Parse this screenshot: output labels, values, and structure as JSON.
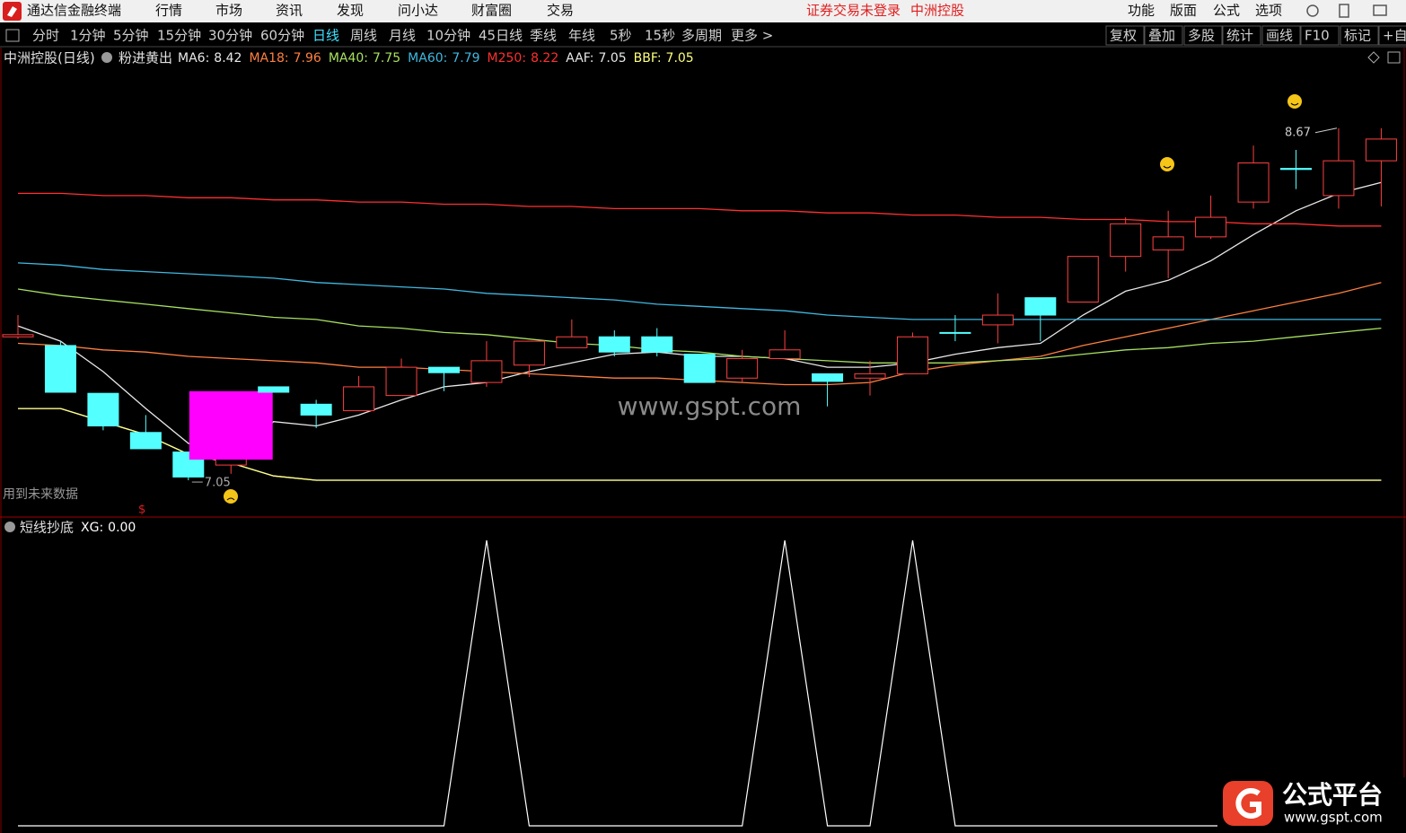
{
  "titlebar": {
    "app": "通达信金融终端",
    "menu": [
      "行情",
      "市场",
      "资讯",
      "发现",
      "问小达",
      "财富圈",
      "交易"
    ],
    "status": [
      "证券交易未登录",
      "中洲控股"
    ],
    "right": [
      "功能",
      "版面",
      "公式",
      "选项"
    ]
  },
  "toolbar": {
    "periods": [
      "分时",
      "1分钟",
      "5分钟",
      "15分钟",
      "30分钟",
      "60分钟",
      "日线",
      "周线",
      "月线",
      "10分钟",
      "45日线",
      "季线",
      "年线",
      "5秒",
      "15秒",
      "多周期",
      "更多 >"
    ],
    "active": 6,
    "tools": [
      "复权",
      "叠加",
      "多股",
      "统计",
      "画线",
      "F10",
      "标记",
      "+自"
    ]
  },
  "chart_data": [
    {
      "type": "candlestick",
      "title": "中洲控股(日线)",
      "indicator": "粉进黄出",
      "up_color": "#ff4040",
      "down_color": "#54ffff",
      "open": [
        7.71,
        7.67,
        7.45,
        7.27,
        7.18,
        7.12,
        7.48,
        7.4,
        7.37,
        7.44,
        7.57,
        7.5,
        7.58,
        7.66,
        7.71,
        7.71,
        7.63,
        7.52,
        7.61,
        7.54,
        7.52,
        7.54,
        7.73,
        7.765,
        7.89,
        7.87,
        8.08,
        8.11,
        8.17,
        8.33,
        8.485,
        8.36,
        8.52
      ],
      "high": [
        7.81,
        7.69,
        7.45,
        7.35,
        7.18,
        7.22,
        7.48,
        7.42,
        7.53,
        7.61,
        7.57,
        7.69,
        7.69,
        7.79,
        7.74,
        7.75,
        7.63,
        7.65,
        7.74,
        7.54,
        7.6,
        7.73,
        7.81,
        7.91,
        7.89,
        8.08,
        8.26,
        8.29,
        8.36,
        8.59,
        8.57,
        8.67,
        8.67
      ],
      "low": [
        7.7,
        7.455,
        7.28,
        7.195,
        7.05,
        7.08,
        7.455,
        7.29,
        7.37,
        7.44,
        7.46,
        7.48,
        7.525,
        7.66,
        7.62,
        7.62,
        7.5,
        7.5,
        7.61,
        7.39,
        7.44,
        7.54,
        7.69,
        7.68,
        7.69,
        7.87,
        8.01,
        7.98,
        8.16,
        8.3,
        8.39,
        8.3,
        8.31
      ],
      "close": [
        7.72,
        7.455,
        7.3,
        7.195,
        7.065,
        7.17,
        7.455,
        7.35,
        7.48,
        7.57,
        7.545,
        7.6,
        7.69,
        7.71,
        7.64,
        7.64,
        7.5,
        7.61,
        7.65,
        7.505,
        7.54,
        7.71,
        7.73,
        7.81,
        7.81,
        8.08,
        8.23,
        8.17,
        8.26,
        8.51,
        8.48,
        8.52,
        8.62
      ],
      "series": [
        {
          "name": "MA6:",
          "color": "#e8e8e8",
          "values": [
            7.76,
            7.69,
            7.55,
            7.38,
            7.22,
            7.15,
            7.32,
            7.3,
            7.35,
            7.42,
            7.48,
            7.5,
            7.55,
            7.59,
            7.63,
            7.64,
            7.62,
            7.62,
            7.61,
            7.57,
            7.57,
            7.59,
            7.63,
            7.66,
            7.68,
            7.81,
            7.92,
            7.97,
            8.06,
            8.18,
            8.29,
            8.37,
            8.42
          ]
        },
        {
          "name": "MA18:",
          "color": "#ff8040",
          "values": [
            7.68,
            7.67,
            7.65,
            7.64,
            7.62,
            7.61,
            7.6,
            7.59,
            7.57,
            7.57,
            7.56,
            7.55,
            7.54,
            7.53,
            7.52,
            7.52,
            7.51,
            7.5,
            7.49,
            7.49,
            7.5,
            7.55,
            7.58,
            7.6,
            7.62,
            7.67,
            7.71,
            7.75,
            7.79,
            7.83,
            7.87,
            7.91,
            7.96
          ]
        },
        {
          "name": "MA40:",
          "color": "#a8e060",
          "values": [
            7.93,
            7.9,
            7.88,
            7.86,
            7.84,
            7.82,
            7.8,
            7.79,
            7.76,
            7.75,
            7.73,
            7.72,
            7.7,
            7.68,
            7.67,
            7.65,
            7.64,
            7.62,
            7.61,
            7.6,
            7.59,
            7.59,
            7.59,
            7.6,
            7.61,
            7.63,
            7.65,
            7.66,
            7.68,
            7.69,
            7.71,
            7.73,
            7.75
          ]
        },
        {
          "name": "MA60:",
          "color": "#40b8e0",
          "values": [
            8.05,
            8.04,
            8.02,
            8.01,
            8.0,
            7.99,
            7.98,
            7.96,
            7.95,
            7.94,
            7.93,
            7.91,
            7.9,
            7.89,
            7.88,
            7.86,
            7.85,
            7.84,
            7.83,
            7.81,
            7.8,
            7.79,
            7.79,
            7.79,
            7.79,
            7.79,
            7.79,
            7.79,
            7.79,
            7.79,
            7.79,
            7.79,
            7.79
          ]
        },
        {
          "name": "M250:",
          "color": "#ff3030",
          "values": [
            8.37,
            8.37,
            8.36,
            8.36,
            8.35,
            8.35,
            8.34,
            8.34,
            8.33,
            8.33,
            8.32,
            8.32,
            8.31,
            8.31,
            8.3,
            8.3,
            8.3,
            8.29,
            8.29,
            8.28,
            8.28,
            8.27,
            8.27,
            8.26,
            8.26,
            8.25,
            8.25,
            8.24,
            8.24,
            8.23,
            8.23,
            8.22,
            8.22
          ]
        },
        {
          "name": "AAF:",
          "color": "#e8e8e8",
          "values": [
            7.38,
            7.38,
            7.32,
            7.26,
            7.17,
            7.13,
            7.07,
            7.05,
            7.05,
            7.05,
            7.05,
            7.05,
            7.05,
            7.05,
            7.05,
            7.05,
            7.05,
            7.05,
            7.05,
            7.05,
            7.05,
            7.05,
            7.05,
            7.05,
            7.05,
            7.05,
            7.05,
            7.05,
            7.05,
            7.05,
            7.05,
            7.05,
            7.05
          ]
        },
        {
          "name": "BBF:",
          "color": "#ffff80",
          "values": [
            7.38,
            7.38,
            7.32,
            7.26,
            7.17,
            7.13,
            7.07,
            7.05,
            7.05,
            7.05,
            7.05,
            7.05,
            7.05,
            7.05,
            7.05,
            7.05,
            7.05,
            7.05,
            7.05,
            7.05,
            7.05,
            7.05,
            7.05,
            7.05,
            7.05,
            7.05,
            7.05,
            7.05,
            7.05,
            7.05,
            7.05,
            7.05,
            7.05
          ]
        }
      ],
      "pink_box": {
        "start": 4,
        "end": 6,
        "top": 7.46,
        "bottom": 7.145,
        "color": "#ff00ff"
      },
      "low_label": 7.05,
      "high_label": 8.67,
      "note": "用到未来数据",
      "marker": "$",
      "watermark": "www.gspt.com",
      "ylim": [
        6.885,
        8.95
      ]
    },
    {
      "type": "line",
      "title": "短线抄底",
      "series": [
        {
          "name": "XG:",
          "color": "#ffffff",
          "legend_label": "0.00",
          "values": [
            0,
            0,
            0,
            0,
            0,
            0,
            0,
            0,
            0,
            0,
            0,
            1,
            0,
            0,
            0,
            0,
            0,
            0,
            1,
            0,
            0,
            1,
            0,
            0,
            0,
            0,
            0,
            0,
            0,
            0,
            0,
            0,
            0
          ]
        }
      ],
      "ylim": [
        0,
        1
      ]
    }
  ],
  "logo": {
    "title": "公式平台",
    "url": "www.gspt.com"
  }
}
